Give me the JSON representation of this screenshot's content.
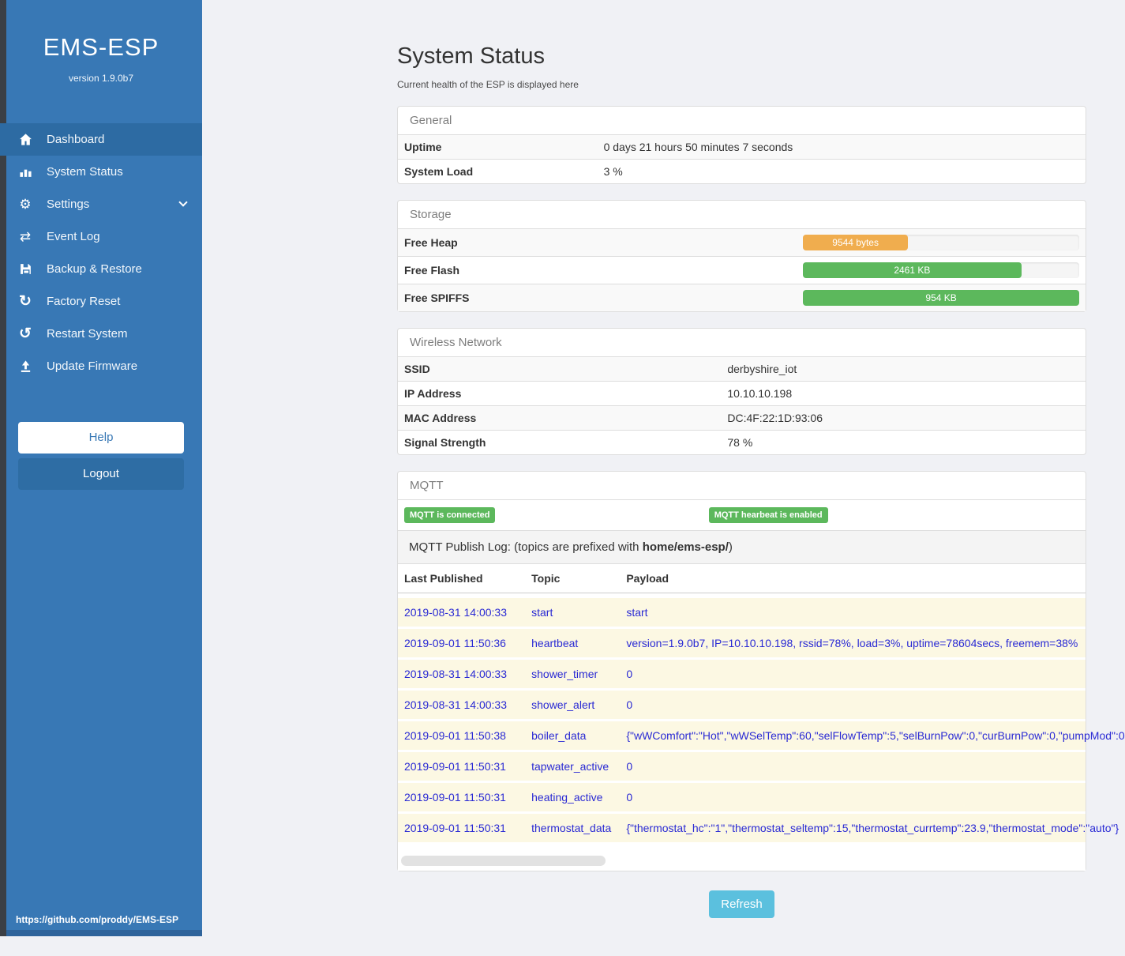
{
  "sidebar": {
    "title": "EMS-ESP",
    "version": "version 1.9.0b7",
    "items": [
      {
        "label": "Dashboard",
        "icon": "home-icon",
        "active": true
      },
      {
        "label": "System Status",
        "icon": "bar-chart-icon",
        "active": false
      },
      {
        "label": "Settings",
        "icon": "gear-icon",
        "active": false,
        "has_chevron": true
      },
      {
        "label": "Event Log",
        "icon": "arrows-swap-icon",
        "active": false
      },
      {
        "label": "Backup & Restore",
        "icon": "floppy-save-icon",
        "active": false
      },
      {
        "label": "Factory Reset",
        "icon": "refresh-icon",
        "active": false
      },
      {
        "label": "Restart System",
        "icon": "sync-icon",
        "active": false
      },
      {
        "label": "Update Firmware",
        "icon": "upload-icon",
        "active": false
      }
    ],
    "help_label": "Help",
    "logout_label": "Logout",
    "footer_link": "https://github.com/proddy/EMS-ESP"
  },
  "page": {
    "title": "System Status",
    "subtitle": "Current health of the ESP is displayed here",
    "refresh_label": "Refresh"
  },
  "general": {
    "heading": "General",
    "rows": [
      {
        "label": "Uptime",
        "value": "0 days 21 hours 50 minutes 7 seconds"
      },
      {
        "label": "System Load",
        "value": "3 %"
      }
    ]
  },
  "storage": {
    "heading": "Storage",
    "rows": [
      {
        "label": "Free Heap",
        "value": "9544 bytes",
        "percent": 38,
        "color": "#f0ad4e"
      },
      {
        "label": "Free Flash",
        "value": "2461 KB",
        "percent": 79,
        "color": "#5cb85c"
      },
      {
        "label": "Free SPIFFS",
        "value": "954 KB",
        "percent": 100,
        "color": "#5cb85c"
      }
    ]
  },
  "wireless": {
    "heading": "Wireless Network",
    "rows": [
      {
        "label": "SSID",
        "value": "derbyshire_iot"
      },
      {
        "label": "IP Address",
        "value": "10.10.10.198"
      },
      {
        "label": "MAC Address",
        "value": "DC:4F:22:1D:93:06"
      },
      {
        "label": "Signal Strength",
        "value": "78 %"
      }
    ]
  },
  "mqtt": {
    "heading": "MQTT",
    "badges": [
      "MQTT is connected",
      "MQTT hearbeat is enabled"
    ],
    "publish_log": {
      "prefix": "MQTT Publish Log: (topics are prefixed with ",
      "bold": "home/ems-esp/",
      "suffix": ")"
    },
    "columns": [
      "Last Published",
      "Topic",
      "Payload"
    ],
    "rows": [
      [
        "2019-08-31 14:00:33",
        "start",
        "start"
      ],
      [
        "2019-09-01 11:50:36",
        "heartbeat",
        "version=1.9.0b7, IP=10.10.10.198, rssid=78%, load=3%, uptime=78604secs, freemem=38%"
      ],
      [
        "2019-08-31 14:00:33",
        "shower_timer",
        "0"
      ],
      [
        "2019-08-31 14:00:33",
        "shower_alert",
        "0"
      ],
      [
        "2019-09-01 11:50:38",
        "boiler_data",
        "{\"wWComfort\":\"Hot\",\"wWSelTemp\":60,\"selFlowTemp\":5,\"selBurnPow\":0,\"curBurnPow\":0,\"pumpMod\":0"
      ],
      [
        "2019-09-01 11:50:31",
        "tapwater_active",
        "0"
      ],
      [
        "2019-09-01 11:50:31",
        "heating_active",
        "0"
      ],
      [
        "2019-09-01 11:50:31",
        "thermostat_data",
        "{\"thermostat_hc\":\"1\",\"thermostat_seltemp\":15,\"thermostat_currtemp\":23.9,\"thermostat_mode\":\"auto\"}"
      ]
    ]
  },
  "colors": {
    "sidebar": "#3878b5",
    "sidebar_active": "#2d6ba3",
    "badge_green": "#5cb85c",
    "warning_orange": "#f0ad4e",
    "success_green": "#5cb85c",
    "refresh_blue": "#5bc0de",
    "log_text_blue": "#2a2ad4",
    "log_row_bg": "#fcf8e3"
  }
}
